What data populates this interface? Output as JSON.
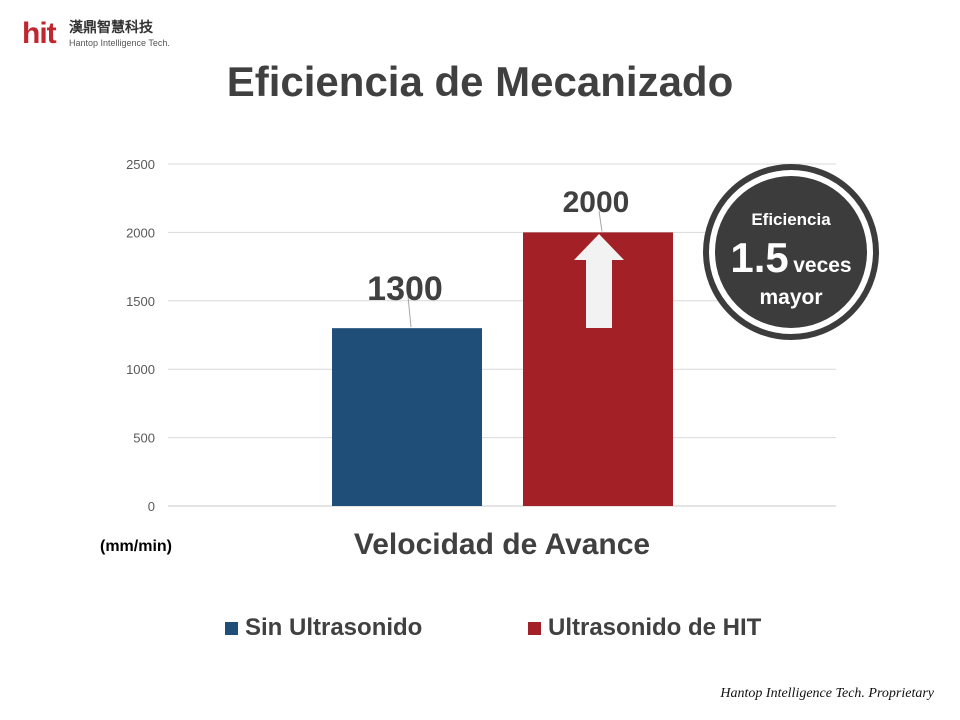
{
  "logo": {
    "mark": "hit",
    "cn": "漢鼎智慧科技",
    "en": "Hantop Intelligence Tech."
  },
  "title": "Eficiencia de Mecanizado",
  "chart_data": {
    "type": "bar",
    "categories": [
      "Velocidad de Avance"
    ],
    "series": [
      {
        "name": "Sin Ultrasonido",
        "values": [
          1300
        ],
        "color": "#1f4e79"
      },
      {
        "name": "Ultrasonido de HIT",
        "values": [
          2000
        ],
        "color": "#a32126"
      }
    ],
    "xlabel": "Velocidad de Avance",
    "ylabel": "(mm/min)",
    "ylim": [
      0,
      2500
    ],
    "yticks": [
      0,
      500,
      1000,
      1500,
      2000,
      2500
    ],
    "grid": true,
    "legend_position": "bottom",
    "data_labels": [
      "1300",
      "2000"
    ]
  },
  "badge": {
    "line1": "Eficiencia",
    "big": "1.5",
    "small": "veces",
    "line3": "mayor"
  },
  "footer": "Hantop Intelligence Tech. Proprietary",
  "colors": {
    "blue": "#1f4e79",
    "red": "#a32126",
    "dark": "#3c3c3c",
    "arrow": "#f2f2f2"
  }
}
